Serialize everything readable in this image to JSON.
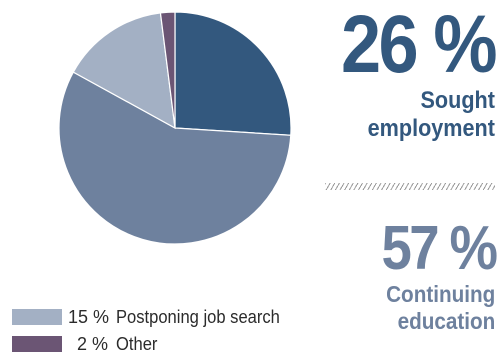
{
  "chart_data": {
    "type": "pie",
    "slices": [
      {
        "label": "Sought employment",
        "value": 26,
        "pct_label": "26 %",
        "color": "#33587e"
      },
      {
        "label": "Continuing education",
        "value": 57,
        "pct_label": "57 %",
        "color": "#6e819e"
      },
      {
        "label": "Postponing job search",
        "value": 15,
        "pct_label": "15 %",
        "color": "#a3b0c4"
      },
      {
        "label": "Other",
        "value": 2,
        "pct_label": "2 %",
        "color": "#6b5574"
      }
    ],
    "start_angle_deg": 0,
    "direction": "clockwise"
  },
  "callouts": [
    {
      "value": "26 %",
      "line1": "Sought",
      "line2": "employment"
    },
    {
      "value": "57 %",
      "line1": "Continuing",
      "line2": "education"
    }
  ],
  "legend": [
    {
      "pct": "15 %",
      "label": "Postponing job search",
      "color": "#a3b0c4"
    },
    {
      "pct": "2 %",
      "label": "Other",
      "color": "#6b5574"
    }
  ]
}
